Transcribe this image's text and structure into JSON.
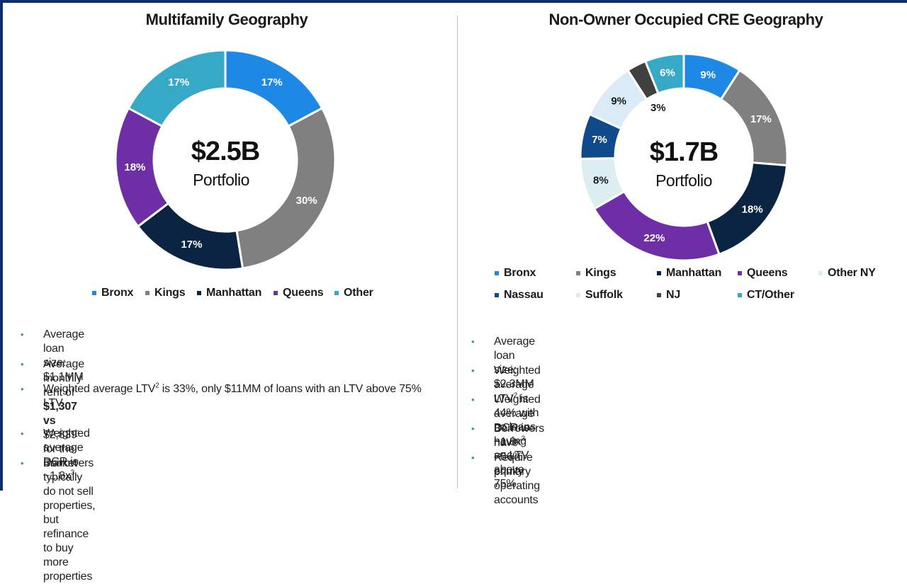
{
  "chart_data": [
    {
      "type": "pie",
      "title": "Multifamily Geography",
      "center": {
        "value": "$2.5B",
        "label": "Portfolio"
      },
      "categories": [
        "Bronx",
        "Kings",
        "Manhattan",
        "Queens",
        "Other"
      ],
      "values": [
        17,
        30,
        17,
        18,
        17
      ],
      "labels": [
        "17%",
        "30%",
        "17%",
        "18%",
        "17%"
      ],
      "colors": [
        "#1e88e5",
        "#808080",
        "#0b2442",
        "#6d2ea6",
        "#36a9c6"
      ],
      "label_colors": [
        "#ffffff",
        "#ffffff",
        "#ffffff",
        "#ffffff",
        "#ffffff"
      ],
      "legend_position": "bottom"
    },
    {
      "type": "pie",
      "title": "Non-Owner Occupied CRE Geography",
      "center": {
        "value": "$1.7B",
        "label": "Portfolio"
      },
      "categories": [
        "Bronx",
        "Kings",
        "Manhattan",
        "Queens",
        "Other NY",
        "Nassau",
        "Suffolk",
        "NJ",
        "CT/Other"
      ],
      "values": [
        9,
        17,
        18,
        22,
        8,
        7,
        9,
        3,
        6
      ],
      "labels": [
        "9%",
        "17%",
        "18%",
        "22%",
        "8%",
        "7%",
        "9%",
        "3%",
        "6%"
      ],
      "colors": [
        "#1e88e5",
        "#808080",
        "#0b2442",
        "#6d2ea6",
        "#ddeef3",
        "#0f4a8a",
        "#dbeaf7",
        "#404040",
        "#36a9c6"
      ],
      "label_colors": [
        "#ffffff",
        "#ffffff",
        "#ffffff",
        "#ffffff",
        "#1a1a1a",
        "#ffffff",
        "#1a1a1a",
        "#1a1a1a",
        "#ffffff"
      ],
      "legend_position": "bottom"
    }
  ],
  "left_bullets": [
    {
      "pre": "Average loan size: $1.1MM"
    },
    {
      "pre": "Average monthly rent of ",
      "bold": "$1,307 vs",
      "post": " $2,839",
      "sup": "1",
      "post2": " for the market"
    },
    {
      "pre": "Weighted average LTV",
      "sup": "2",
      "post": "  is 33%, only $11MM of loans with an LTV above 75%",
      "line2": "LTV"
    },
    {
      "pre": "Weighted average DCR is ~1.8x",
      "sup": "3"
    },
    {
      "pre": "Borrowers typically do not sell properties, but refinance to buy more properties"
    }
  ],
  "right_bullets": [
    {
      "pre": "Average loan size: $2.3MM"
    },
    {
      "pre": "Weighted average LTV",
      "sup": "2",
      "post": " is 44% with no loans having an LTV above 75%"
    },
    {
      "pre": "Weighted average DCR is ~1.8x",
      "sup": "3"
    },
    {
      "pre": "Borrowers have ~56% equity"
    },
    {
      "pre": "Require primary operating accounts"
    }
  ],
  "bullet_symbol": "•"
}
